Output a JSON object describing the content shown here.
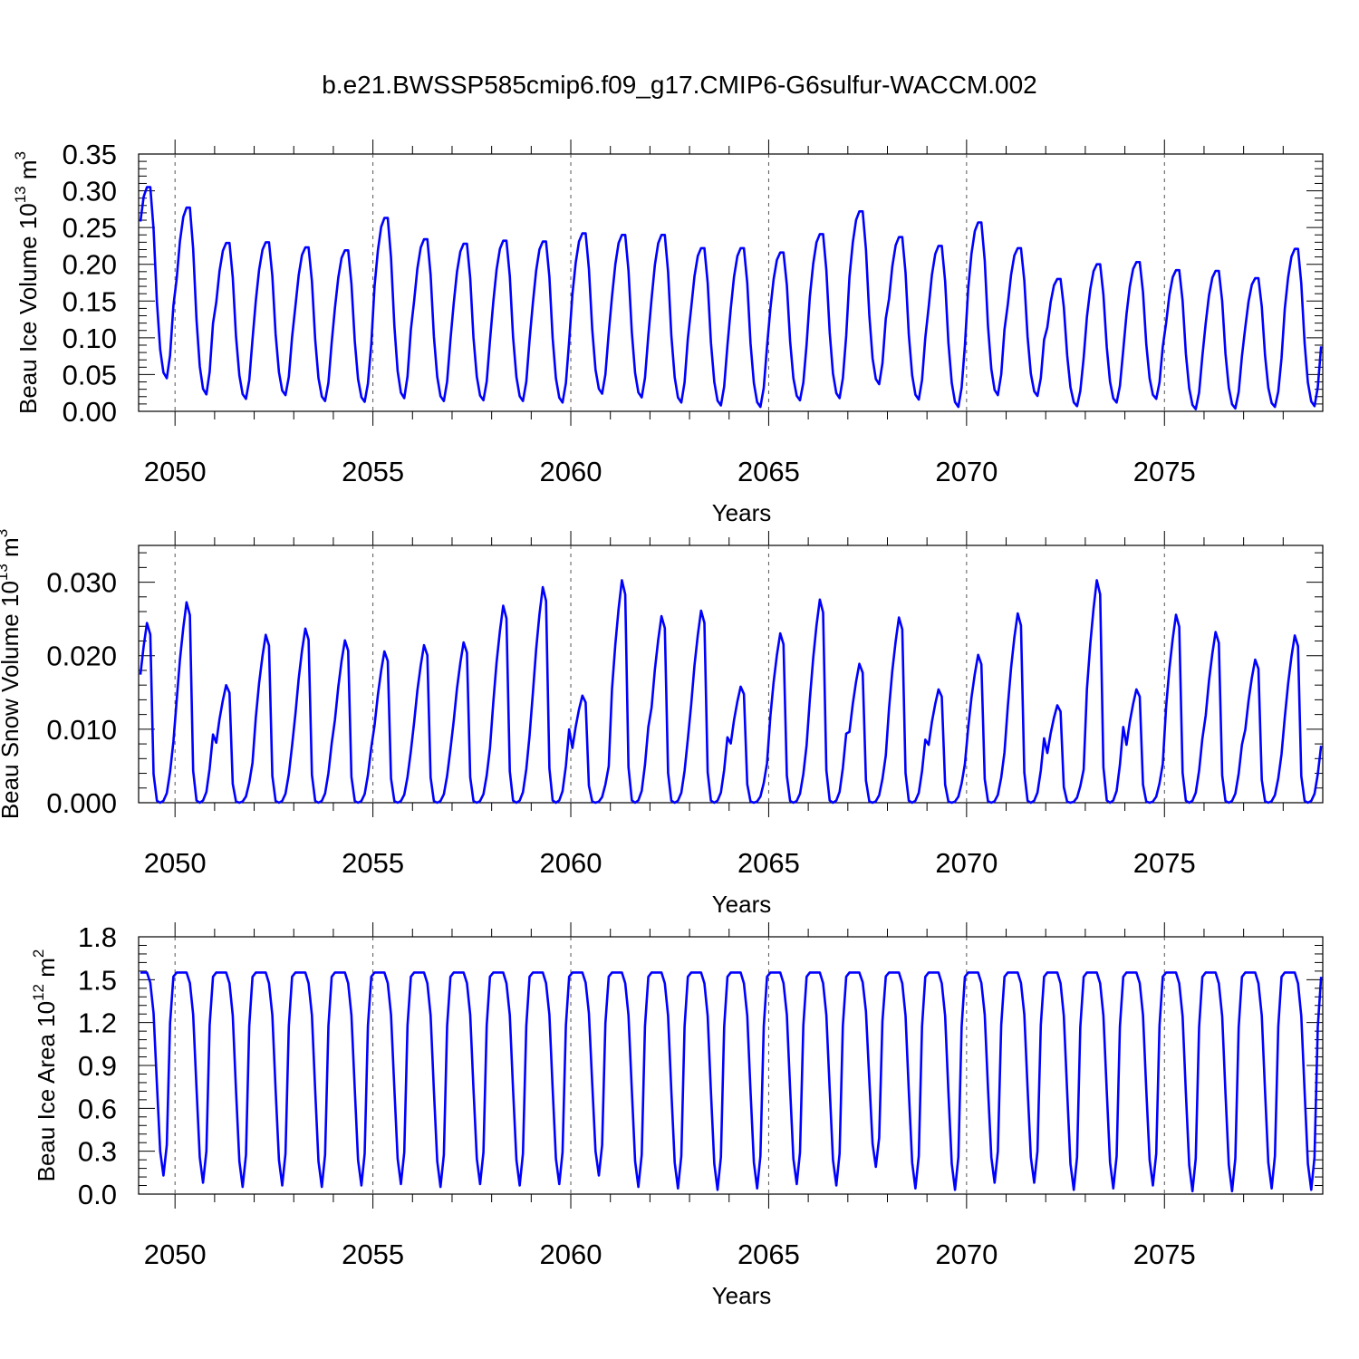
{
  "title": "b.e21.BWSSP585cmip6.f09_g17.CMIP6-G6sulfur-WACCM.002",
  "chart_data": [
    {
      "type": "line",
      "ylabel": "Beau Ice Volume 10",
      "ylabel_exp": "13",
      "ylabel_unit": " m",
      "ylabel_unit_exp": "3",
      "xlabel": "Years",
      "xlim": [
        2049.08,
        2079.0
      ],
      "ylim": [
        0.0,
        0.35
      ],
      "x_ticks": [
        2050,
        2055,
        2060,
        2065,
        2070,
        2075
      ],
      "y_ticks": [
        "0.00",
        "0.05",
        "0.10",
        "0.15",
        "0.20",
        "0.25",
        "0.30",
        "0.35"
      ],
      "color": "#0000ff",
      "peaks": [
        0.305,
        0.277,
        0.229,
        0.23,
        0.223,
        0.219,
        0.263,
        0.234,
        0.228,
        0.232,
        0.231,
        0.242,
        0.24,
        0.24,
        0.222,
        0.222,
        0.216,
        0.241,
        0.272,
        0.237,
        0.225,
        0.257,
        0.222,
        0.18,
        0.2,
        0.203,
        0.192,
        0.191,
        0.181,
        0.221
      ],
      "troughs": [
        0.045,
        0.023,
        0.017,
        0.022,
        0.014,
        0.013,
        0.018,
        0.014,
        0.015,
        0.014,
        0.012,
        0.024,
        0.019,
        0.012,
        0.008,
        0.006,
        0.015,
        0.018,
        0.037,
        0.016,
        0.006,
        0.022,
        0.021,
        0.007,
        0.012,
        0.017,
        0.003,
        0.004,
        0.006,
        0.007
      ]
    },
    {
      "type": "line",
      "ylabel": "Beau Snow Volume 10",
      "ylabel_exp": "13",
      "ylabel_unit": " m",
      "ylabel_unit_exp": "3",
      "xlabel": "Years",
      "xlim": [
        2049.08,
        2079.0
      ],
      "ylim": [
        0.0,
        0.035
      ],
      "x_ticks": [
        2050,
        2055,
        2060,
        2065,
        2070,
        2075
      ],
      "y_ticks": [
        "0.000",
        "0.010",
        "0.020",
        "0.030"
      ],
      "color": "#0000ff",
      "peaks": [
        0.026,
        0.029,
        0.017,
        0.0243,
        0.0252,
        0.0235,
        0.0219,
        0.0228,
        0.0232,
        0.0285,
        0.0312,
        0.0155,
        0.0322,
        0.027,
        0.0278,
        0.0168,
        0.0245,
        0.0294,
        0.0201,
        0.0268,
        0.0164,
        0.0214,
        0.0274,
        0.0141,
        0.0322,
        0.0164,
        0.0272,
        0.0247,
        0.0207,
        0.0242
      ]
    },
    {
      "type": "line",
      "ylabel": "Beau Ice Area 10",
      "ylabel_exp": "12",
      "ylabel_unit": " m",
      "ylabel_unit_exp": "2",
      "xlabel": "Years",
      "xlim": [
        2049.08,
        2079.0
      ],
      "ylim": [
        0.0,
        1.8
      ],
      "x_ticks": [
        2050,
        2055,
        2060,
        2065,
        2070,
        2075
      ],
      "y_ticks": [
        "0.0",
        "0.3",
        "0.6",
        "0.9",
        "1.2",
        "1.5",
        "1.8"
      ],
      "color": "#0000ff",
      "peaks": [
        1.55,
        1.55,
        1.55,
        1.55,
        1.55,
        1.55,
        1.55,
        1.55,
        1.55,
        1.55,
        1.55,
        1.55,
        1.55,
        1.55,
        1.55,
        1.55,
        1.55,
        1.55,
        1.55,
        1.55,
        1.55,
        1.55,
        1.55,
        1.55,
        1.55,
        1.55,
        1.55,
        1.55,
        1.55,
        1.55
      ],
      "troughs": [
        0.13,
        0.08,
        0.05,
        0.06,
        0.05,
        0.06,
        0.07,
        0.05,
        0.07,
        0.06,
        0.07,
        0.13,
        0.05,
        0.04,
        0.03,
        0.04,
        0.07,
        0.06,
        0.19,
        0.04,
        0.03,
        0.08,
        0.08,
        0.03,
        0.04,
        0.06,
        0.02,
        0.02,
        0.04,
        0.03
      ]
    }
  ]
}
